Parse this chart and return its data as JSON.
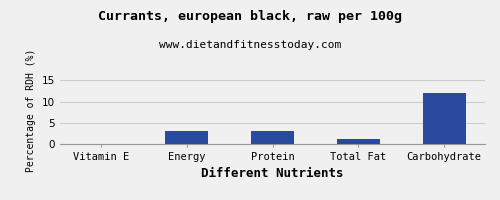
{
  "title": "Currants, european black, raw per 100g",
  "subtitle": "www.dietandfitnesstoday.com",
  "xlabel": "Different Nutrients",
  "ylabel": "Percentage of RDH (%)",
  "categories": [
    "Vitamin E",
    "Energy",
    "Protein",
    "Total Fat",
    "Carbohydrate"
  ],
  "values": [
    0.1,
    3.0,
    3.0,
    1.1,
    12.1
  ],
  "bar_color": "#2a4a9f",
  "ylim": [
    0,
    16
  ],
  "yticks": [
    0,
    5,
    10,
    15
  ],
  "background_color": "#f0f0f0",
  "title_fontsize": 9.5,
  "subtitle_fontsize": 8,
  "xlabel_fontsize": 9,
  "ylabel_fontsize": 7,
  "tick_fontsize": 7.5,
  "grid_color": "#cccccc"
}
